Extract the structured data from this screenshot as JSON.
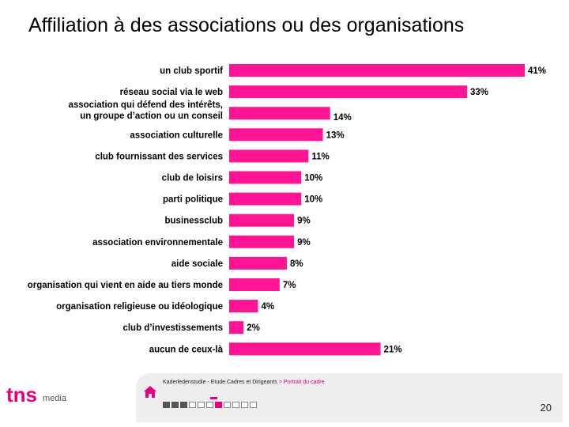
{
  "title": "Affiliation à des associations ou des organisations",
  "chart_data": {
    "type": "bar",
    "orientation": "horizontal",
    "title": "Affiliation à des associations ou des organisations",
    "categories": [
      [
        "un club sportif"
      ],
      [
        "réseau social via le web"
      ],
      [
        "association qui défend des intérêts,",
        "un groupe d’action ou un conseil"
      ],
      [
        "association culturelle"
      ],
      [
        "club fournissant des services"
      ],
      [
        "club de loisirs"
      ],
      [
        "parti politique"
      ],
      [
        "businessclub"
      ],
      [
        "association environnementale"
      ],
      [
        "aide sociale"
      ],
      [
        "organisation qui vient en aide au tiers monde"
      ],
      [
        "organisation religieuse ou idéologique"
      ],
      [
        "club d’investissements"
      ],
      [
        "aucun de ceux-là"
      ]
    ],
    "values": [
      41,
      33,
      14,
      13,
      11,
      10,
      10,
      9,
      9,
      8,
      7,
      4,
      2,
      21
    ],
    "value_labels": [
      "41%",
      "33%",
      "14%",
      "13%",
      "11%",
      "10%",
      "10%",
      "9%",
      "9%",
      "8%",
      "7%",
      "4%",
      "2%",
      "21%"
    ],
    "unit": "%",
    "xlim": [
      0,
      41
    ],
    "color": "#ff1493"
  },
  "footer": {
    "source": "Kaderledenstudie - Etude Cadres et Dirigeants",
    "separator": " > ",
    "section": "Portrait du cadre",
    "page_number": "20"
  },
  "logo": {
    "brand": "tns",
    "sub": "media"
  },
  "colors": {
    "accent": "#e6007e",
    "bar": "#ff1493",
    "panel": "#eeeeee"
  }
}
